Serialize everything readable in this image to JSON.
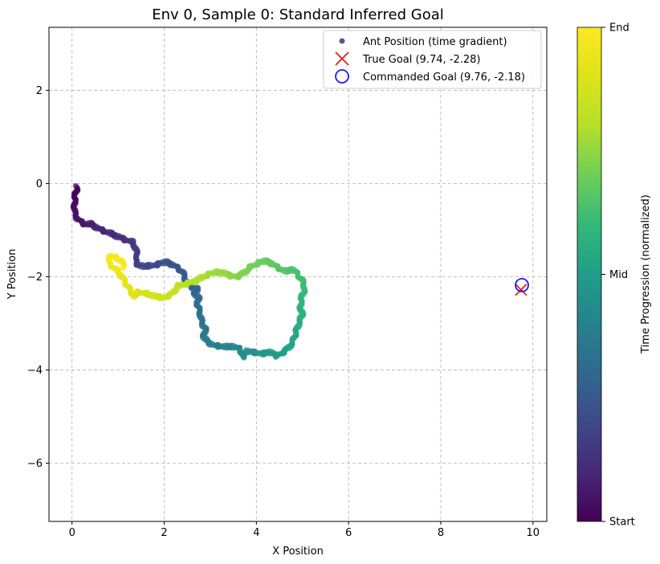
{
  "chart_data": {
    "type": "scatter",
    "title": "Env 0, Sample 0: Standard Inferred Goal",
    "xlabel": "X Position",
    "ylabel": "Y Position",
    "xlim": [
      -0.5,
      10.3
    ],
    "ylim": [
      -7.25,
      3.35
    ],
    "xticks": [
      0,
      2,
      4,
      6,
      8,
      10
    ],
    "yticks": [
      -6,
      -4,
      -2,
      0,
      2
    ],
    "grid": true,
    "legend_position": "top-right",
    "series": [
      {
        "name": "Ant Position (time gradient)",
        "kind": "trajectory",
        "colormap": "viridis",
        "path": [
          [
            0.08,
            -0.08
          ],
          [
            0.1,
            -0.12
          ],
          [
            0.06,
            -0.3
          ],
          [
            0.05,
            -0.6
          ],
          [
            0.1,
            -0.72
          ],
          [
            0.18,
            -0.82
          ],
          [
            0.28,
            -0.88
          ],
          [
            0.4,
            -0.86
          ],
          [
            0.5,
            -0.92
          ],
          [
            0.6,
            -0.98
          ],
          [
            0.75,
            -1.04
          ],
          [
            0.9,
            -1.1
          ],
          [
            1.05,
            -1.16
          ],
          [
            1.2,
            -1.22
          ],
          [
            1.32,
            -1.26
          ],
          [
            1.38,
            -1.4
          ],
          [
            1.42,
            -1.55
          ],
          [
            1.37,
            -1.72
          ],
          [
            1.55,
            -1.78
          ],
          [
            1.75,
            -1.76
          ],
          [
            1.9,
            -1.72
          ],
          [
            2.05,
            -1.68
          ],
          [
            2.2,
            -1.75
          ],
          [
            2.3,
            -1.82
          ],
          [
            2.4,
            -1.9
          ],
          [
            2.45,
            -2.05
          ],
          [
            2.52,
            -2.15
          ],
          [
            2.6,
            -2.22
          ],
          [
            2.72,
            -2.25
          ],
          [
            2.65,
            -2.35
          ],
          [
            2.75,
            -2.45
          ],
          [
            2.72,
            -2.6
          ],
          [
            2.78,
            -2.8
          ],
          [
            2.82,
            -3.0
          ],
          [
            2.9,
            -3.1
          ],
          [
            2.85,
            -3.3
          ],
          [
            2.95,
            -3.4
          ],
          [
            3.1,
            -3.48
          ],
          [
            3.3,
            -3.5
          ],
          [
            3.5,
            -3.5
          ],
          [
            3.65,
            -3.55
          ],
          [
            3.7,
            -3.72
          ],
          [
            3.8,
            -3.6
          ],
          [
            3.95,
            -3.62
          ],
          [
            4.1,
            -3.65
          ],
          [
            4.3,
            -3.62
          ],
          [
            4.45,
            -3.7
          ],
          [
            4.6,
            -3.6
          ],
          [
            4.72,
            -3.5
          ],
          [
            4.8,
            -3.38
          ],
          [
            4.85,
            -3.2
          ],
          [
            4.92,
            -3.0
          ],
          [
            5.0,
            -2.82
          ],
          [
            4.95,
            -2.65
          ],
          [
            4.98,
            -2.45
          ],
          [
            5.05,
            -2.25
          ],
          [
            5.0,
            -2.1
          ],
          [
            4.9,
            -1.95
          ],
          [
            4.8,
            -1.85
          ],
          [
            4.62,
            -1.88
          ],
          [
            4.45,
            -1.8
          ],
          [
            4.35,
            -1.72
          ],
          [
            4.2,
            -1.66
          ],
          [
            4.05,
            -1.7
          ],
          [
            3.9,
            -1.78
          ],
          [
            3.75,
            -1.9
          ],
          [
            3.58,
            -2.0
          ],
          [
            3.45,
            -1.98
          ],
          [
            3.3,
            -1.92
          ],
          [
            3.1,
            -1.9
          ],
          [
            2.9,
            -1.98
          ],
          [
            2.7,
            -2.08
          ],
          [
            2.5,
            -2.15
          ],
          [
            2.3,
            -2.2
          ],
          [
            2.15,
            -2.38
          ],
          [
            2.0,
            -2.45
          ],
          [
            1.8,
            -2.42
          ],
          [
            1.6,
            -2.36
          ],
          [
            1.4,
            -2.33
          ],
          [
            1.35,
            -2.42
          ],
          [
            1.25,
            -2.28
          ],
          [
            1.15,
            -2.1
          ],
          [
            1.05,
            -1.95
          ],
          [
            0.95,
            -1.85
          ],
          [
            0.78,
            -1.68
          ],
          [
            0.85,
            -1.55
          ],
          [
            0.95,
            -1.6
          ],
          [
            1.08,
            -1.66
          ],
          [
            1.12,
            -1.8
          ]
        ]
      },
      {
        "name": "True Goal (9.74, -2.28)",
        "kind": "marker-x",
        "color": "#e02020",
        "x": 9.74,
        "y": -2.28
      },
      {
        "name": "Commanded Goal (9.76, -2.18)",
        "kind": "marker-circle",
        "color": "#1c1cf0",
        "x": 9.76,
        "y": -2.18
      }
    ],
    "colorbar": {
      "label": "Time Progression (normalized)",
      "ticks": [
        {
          "value": 0,
          "label": "Start"
        },
        {
          "value": 0.5,
          "label": "Mid"
        },
        {
          "value": 1,
          "label": "End"
        }
      ]
    }
  }
}
